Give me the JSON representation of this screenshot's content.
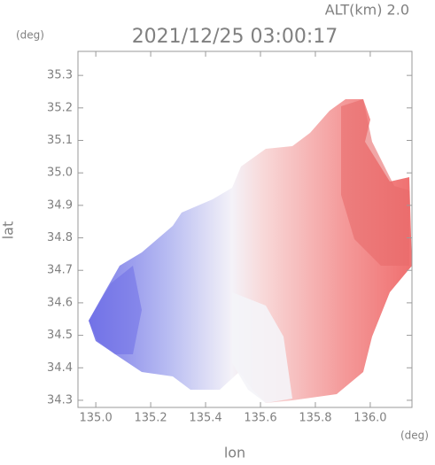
{
  "chart_data": {
    "type": "radar-map",
    "title": "2021/12/25 03:00:17",
    "altitude_label": "ALT(km)  2.0",
    "y_unit": "(deg)",
    "x_unit": "(deg)",
    "xlabel": "lon",
    "ylabel": "lat",
    "xlim": [
      134.935,
      136.152
    ],
    "xticks": [
      {
        "value": 135.0,
        "label": "135.0"
      },
      135.2,
      135.4,
      135.6,
      135.8,
      {
        "value": 136.0,
        "label": "136.0"
      }
    ],
    "ylim": [
      34.278,
      35.374
    ],
    "yticks": [
      34.3,
      34.4,
      34.5,
      34.6,
      34.7,
      34.8,
      34.9,
      {
        "value": 35.0,
        "label": "35.0"
      },
      35.1,
      35.2,
      35.3
    ]
  }
}
